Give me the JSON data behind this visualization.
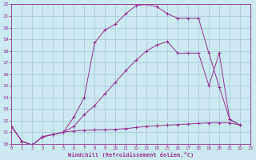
{
  "xlabel": "Windchill (Refroidissement éolien,°C)",
  "bg_color": "#cce8f0",
  "line_color": "#993399",
  "grid_color": "#aaccdd",
  "xlim": [
    0,
    23
  ],
  "ylim": [
    10,
    22
  ],
  "x_ticks": [
    0,
    1,
    2,
    3,
    4,
    5,
    6,
    7,
    8,
    9,
    10,
    11,
    12,
    13,
    14,
    15,
    16,
    17,
    18,
    19,
    20,
    21,
    22,
    23
  ],
  "y_ticks": [
    10,
    11,
    12,
    13,
    14,
    15,
    16,
    17,
    18,
    19,
    20,
    21,
    22
  ],
  "curve1_x": [
    0,
    1,
    2,
    3,
    4,
    5,
    6,
    7,
    8,
    9,
    10,
    11,
    12,
    13,
    14,
    15,
    16,
    17,
    18,
    19,
    20,
    21,
    22
  ],
  "curve1_y": [
    11.5,
    10.2,
    9.9,
    10.6,
    10.8,
    11.0,
    11.1,
    11.15,
    11.2,
    11.2,
    11.25,
    11.3,
    11.4,
    11.5,
    11.55,
    11.6,
    11.65,
    11.7,
    11.75,
    11.8,
    11.8,
    11.8,
    11.6
  ],
  "curve2_x": [
    0,
    1,
    2,
    3,
    4,
    5,
    6,
    7,
    8,
    9,
    10,
    11,
    12,
    13,
    14,
    15,
    16,
    17,
    18,
    19,
    20,
    21,
    22
  ],
  "curve2_y": [
    11.5,
    10.2,
    9.9,
    10.6,
    10.8,
    11.0,
    11.5,
    12.5,
    13.3,
    14.3,
    15.3,
    16.3,
    17.2,
    18.0,
    18.5,
    18.8,
    17.8,
    17.8,
    17.8,
    15.0,
    17.8,
    12.1,
    11.6
  ],
  "curve3_x": [
    0,
    1,
    2,
    3,
    4,
    5,
    6,
    7,
    8,
    9,
    10,
    11,
    12,
    13,
    14,
    15,
    16,
    17,
    18,
    19,
    20,
    21,
    22
  ],
  "curve3_y": [
    11.5,
    10.2,
    9.9,
    10.6,
    10.8,
    11.0,
    12.3,
    14.0,
    18.7,
    19.8,
    20.3,
    21.2,
    21.9,
    22.0,
    21.8,
    21.2,
    20.8,
    20.8,
    20.8,
    17.8,
    14.9,
    12.1,
    11.6
  ]
}
